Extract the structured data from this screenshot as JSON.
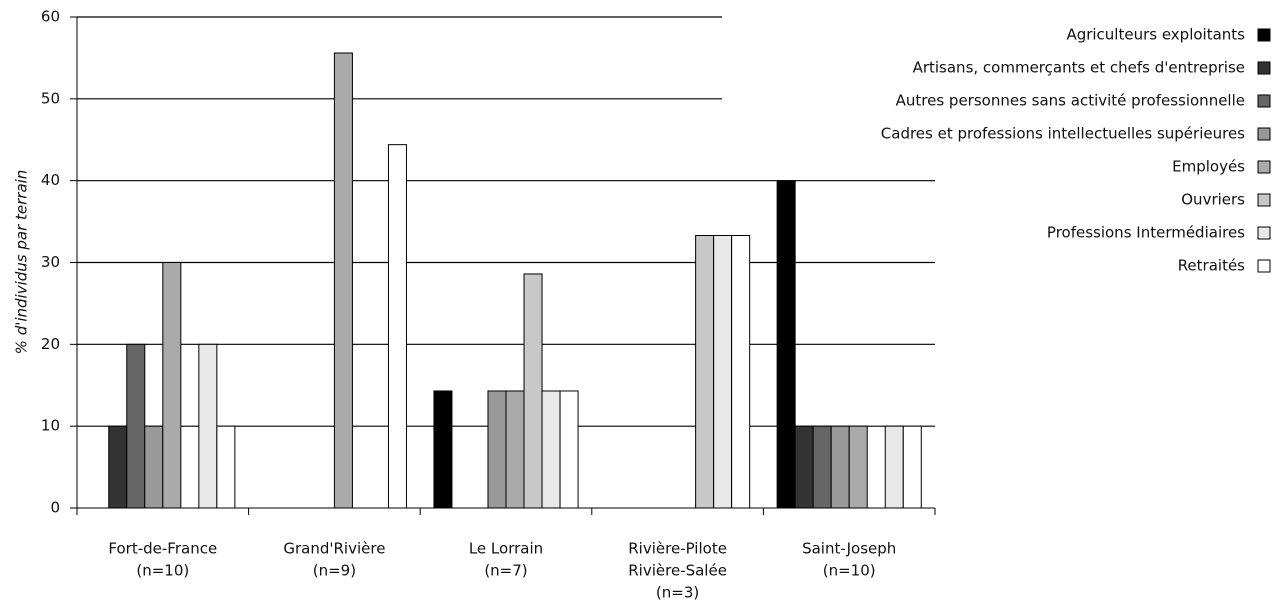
{
  "chart_data": {
    "type": "bar",
    "ylabel": "% d'individus par terrain",
    "categories": [
      [
        "Fort-de-France",
        "(n=10)"
      ],
      [
        "Grand'Rivière",
        "(n=9)"
      ],
      [
        "Le Lorrain",
        "(n=7)"
      ],
      [
        "Rivière-Pilote",
        "Rivière-Salée",
        "(n=3)"
      ],
      [
        "Saint-Joseph",
        "(n=10)"
      ]
    ],
    "series": [
      {
        "name": "Agriculteurs exploitants",
        "color": "#000000",
        "values": [
          0,
          0,
          14.3,
          0,
          40
        ]
      },
      {
        "name": "Artisans, commerçants et chefs d'entreprise",
        "color": "#333333",
        "values": [
          10,
          0,
          0,
          0,
          10
        ]
      },
      {
        "name": "Autres personnes sans activité professionnelle",
        "color": "#666666",
        "values": [
          20,
          0,
          0,
          0,
          10
        ]
      },
      {
        "name": "Cadres et professions intellectuelles supérieures",
        "color": "#999999",
        "values": [
          10,
          0,
          14.3,
          0,
          10
        ]
      },
      {
        "name": "Employés",
        "color": "#aaaaaa",
        "values": [
          30,
          55.6,
          14.3,
          0,
          10
        ]
      },
      {
        "name": "Ouvriers",
        "color": "#c8c8c8",
        "values": [
          0,
          0,
          28.6,
          33.3,
          0
        ]
      },
      {
        "name": "Professions Intermédiaires",
        "color": "#e8e8e8",
        "values": [
          20,
          0,
          14.3,
          33.3,
          10
        ]
      },
      {
        "name": "Retraités",
        "color": "#ffffff",
        "values": [
          10,
          44.4,
          14.3,
          33.3,
          10
        ]
      }
    ],
    "ylim": [
      0,
      60
    ],
    "yticks": [
      0,
      10,
      20,
      30,
      40,
      50,
      60
    ],
    "grid": true,
    "legend": "top-right"
  }
}
